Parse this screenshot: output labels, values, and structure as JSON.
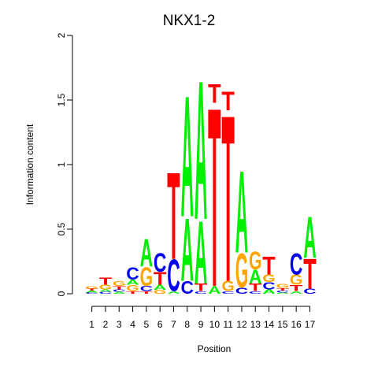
{
  "chart_data": {
    "type": "sequence-logo",
    "title": "NKX1-2",
    "xlabel": "Position",
    "ylabel": "Information content",
    "ylim": [
      0,
      2
    ],
    "yticks": [
      "0",
      "0.5",
      "1",
      "1.5",
      "2"
    ],
    "positions": [
      "1",
      "2",
      "3",
      "4",
      "5",
      "6",
      "7",
      "8",
      "9",
      "10",
      "11",
      "12",
      "13",
      "14",
      "15",
      "16",
      "17"
    ],
    "colors": {
      "A": "#00ee00",
      "C": "#0000ee",
      "G": "#ffa500",
      "T": "#ff0000"
    },
    "stacks": [
      [
        [
          "C",
          0.01
        ],
        [
          "A",
          0.015
        ],
        [
          "T",
          0.015
        ],
        [
          "G",
          0.02
        ]
      ],
      [
        [
          "C",
          0.015
        ],
        [
          "A",
          0.02
        ],
        [
          "G",
          0.035
        ],
        [
          "T",
          0.055
        ]
      ],
      [
        [
          "A",
          0.015
        ],
        [
          "C",
          0.02
        ],
        [
          "T",
          0.025
        ],
        [
          "G",
          0.035
        ]
      ],
      [
        [
          "T",
          0.02
        ],
        [
          "G",
          0.05
        ],
        [
          "A",
          0.04
        ],
        [
          "C",
          0.095
        ]
      ],
      [
        [
          "T",
          0.02
        ],
        [
          "C",
          0.04
        ],
        [
          "G",
          0.15
        ],
        [
          "A",
          0.22
        ]
      ],
      [
        [
          "G",
          0.03
        ],
        [
          "A",
          0.04
        ],
        [
          "T",
          0.1
        ],
        [
          "C",
          0.15
        ]
      ],
      [
        [
          "A",
          0.02
        ],
        [
          "C",
          0.25
        ],
        [
          "T",
          0.69
        ]
      ],
      [
        [
          "C",
          0.1
        ],
        [
          "A",
          0.5
        ],
        [
          "A",
          0.96
        ]
      ],
      [
        [
          "C",
          0.02
        ],
        [
          "T",
          0.06
        ],
        [
          "A",
          0.5
        ],
        [
          "A",
          1.1
        ]
      ],
      [
        [
          "A",
          0.06
        ],
        [
          "T",
          1.42
        ],
        [
          "T",
          0.15
        ]
      ],
      [
        [
          "C",
          0.02
        ],
        [
          "G",
          0.08
        ],
        [
          "T",
          1.32
        ],
        [
          "T",
          0.15
        ]
      ],
      [
        [
          "C",
          0.05
        ],
        [
          "G",
          0.27
        ],
        [
          "A",
          0.65
        ]
      ],
      [
        [
          "C",
          0.02
        ],
        [
          "T",
          0.06
        ],
        [
          "A",
          0.11
        ],
        [
          "G",
          0.14
        ]
      ],
      [
        [
          "A",
          0.035
        ],
        [
          "C",
          0.055
        ],
        [
          "G",
          0.06
        ],
        [
          "T",
          0.14
        ]
      ],
      [
        [
          "A",
          0.01
        ],
        [
          "C",
          0.015
        ],
        [
          "T",
          0.02
        ],
        [
          "G",
          0.03
        ]
      ],
      [
        [
          "A",
          0.02
        ],
        [
          "T",
          0.05
        ],
        [
          "G",
          0.08
        ],
        [
          "C",
          0.17
        ]
      ],
      [
        [
          "C",
          0.04
        ],
        [
          "T",
          0.24
        ],
        [
          "A",
          0.33
        ]
      ]
    ]
  }
}
